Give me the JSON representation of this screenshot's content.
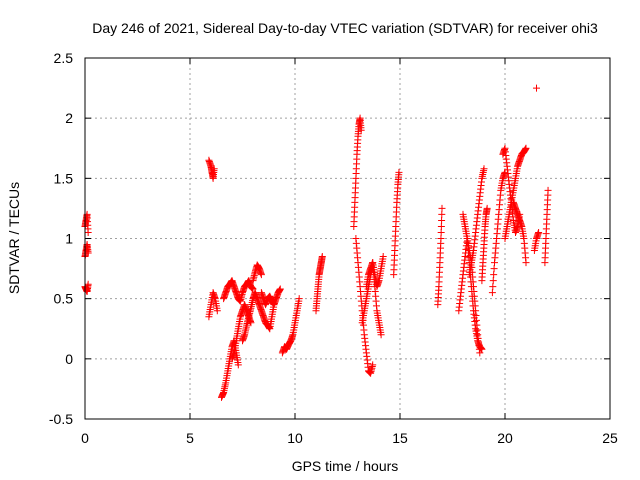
{
  "chart_data": {
    "type": "scatter",
    "title": "Day 246 of 2021, Sidereal Day-to-day VTEC variation (SDTVAR) for receiver ohi3",
    "xlabel": "GPS time / hours",
    "ylabel": "SDTVAR / TECUs",
    "xlim": [
      0,
      25
    ],
    "ylim": [
      -0.5,
      2.5
    ],
    "x_ticks": [
      0,
      5,
      10,
      15,
      20,
      25
    ],
    "x_tick_labels": [
      "0",
      "5",
      "10",
      "15",
      "20",
      "25"
    ],
    "y_ticks": [
      -0.5,
      0,
      0.5,
      1,
      1.5,
      2,
      2.5
    ],
    "y_tick_labels": [
      "-0.5",
      "0",
      "0.5",
      "1",
      "1.5",
      "2",
      "2.5"
    ],
    "grid": true,
    "marker": "plus",
    "color": "#ff0000",
    "series": [
      {
        "name": "SDTVAR",
        "segments": [
          {
            "x": [
              0.0,
              0.05,
              0.1,
              0.15
            ],
            "y": [
              0.6,
              0.58,
              0.56,
              0.62
            ]
          },
          {
            "x": [
              0.0,
              0.05,
              0.1,
              0.15
            ],
            "y": [
              0.85,
              0.9,
              0.95,
              0.88
            ]
          },
          {
            "x": [
              0.0,
              0.05,
              0.1,
              0.15
            ],
            "y": [
              1.1,
              1.15,
              1.2,
              1.05
            ]
          },
          {
            "x": [
              5.9,
              6.0,
              6.05,
              6.1,
              6.15
            ],
            "y": [
              1.65,
              1.6,
              1.55,
              1.5,
              1.58
            ]
          },
          {
            "x": [
              5.9,
              6.0,
              6.1,
              6.2,
              6.3
            ],
            "y": [
              0.35,
              0.45,
              0.55,
              0.5,
              0.4
            ]
          },
          {
            "x": [
              6.5,
              6.6,
              6.7,
              6.8,
              6.9,
              7.0,
              7.1,
              7.2,
              7.3
            ],
            "y": [
              -0.32,
              -0.28,
              -0.2,
              -0.1,
              0.0,
              0.1,
              0.15,
              0.05,
              -0.05
            ]
          },
          {
            "x": [
              6.6,
              6.7,
              6.8,
              6.9,
              7.0,
              7.1,
              7.2,
              7.3,
              7.4,
              7.5,
              7.6,
              7.7,
              7.8,
              7.9,
              8.0
            ],
            "y": [
              0.5,
              0.55,
              0.6,
              0.62,
              0.65,
              0.6,
              0.55,
              0.5,
              0.48,
              0.55,
              0.6,
              0.62,
              0.65,
              0.6,
              0.58
            ]
          },
          {
            "x": [
              7.0,
              7.1,
              7.2,
              7.3,
              7.4,
              7.5,
              7.6,
              7.7,
              7.8,
              7.9
            ],
            "y": [
              0.0,
              0.05,
              0.15,
              0.25,
              0.35,
              0.4,
              0.45,
              0.4,
              0.35,
              0.3
            ]
          },
          {
            "x": [
              7.5,
              7.6,
              7.7,
              7.8,
              7.9,
              8.0,
              8.1,
              8.2,
              8.3,
              8.4,
              8.5,
              8.6,
              8.7,
              8.8,
              8.9,
              9.0
            ],
            "y": [
              0.15,
              0.2,
              0.28,
              0.35,
              0.42,
              0.5,
              0.55,
              0.5,
              0.45,
              0.4,
              0.35,
              0.3,
              0.28,
              0.25,
              0.35,
              0.45
            ]
          },
          {
            "x": [
              8.0,
              8.1,
              8.2,
              8.3,
              8.4
            ],
            "y": [
              0.65,
              0.72,
              0.78,
              0.75,
              0.7
            ]
          },
          {
            "x": [
              8.4,
              8.5,
              8.6,
              8.7,
              8.8,
              8.9,
              9.0,
              9.1,
              9.2,
              9.3
            ],
            "y": [
              0.55,
              0.5,
              0.45,
              0.5,
              0.52,
              0.48,
              0.45,
              0.5,
              0.55,
              0.58
            ]
          },
          {
            "x": [
              9.4,
              9.5,
              9.6,
              9.7,
              9.8,
              9.9,
              10.0,
              10.1,
              10.2
            ],
            "y": [
              0.05,
              0.1,
              0.08,
              0.12,
              0.15,
              0.2,
              0.3,
              0.4,
              0.5
            ]
          },
          {
            "x": [
              11.0,
              11.05,
              11.1,
              11.15,
              11.2,
              11.25,
              11.3
            ],
            "y": [
              0.4,
              0.5,
              0.6,
              0.7,
              0.75,
              0.8,
              0.85
            ]
          },
          {
            "x": [
              12.8,
              12.85,
              12.9,
              12.95,
              13.0,
              13.05,
              13.1,
              13.15
            ],
            "y": [
              1.1,
              1.3,
              1.5,
              1.7,
              1.85,
              1.95,
              2.0,
              1.9
            ]
          },
          {
            "x": [
              12.9,
              13.0,
              13.1,
              13.2,
              13.3,
              13.4,
              13.5,
              13.6,
              13.7
            ],
            "y": [
              1.0,
              0.8,
              0.6,
              0.4,
              0.2,
              0.05,
              -0.1,
              -0.12,
              -0.05
            ]
          },
          {
            "x": [
              13.2,
              13.3,
              13.4,
              13.5,
              13.6,
              13.7,
              13.8,
              13.9,
              14.0,
              14.1
            ],
            "y": [
              0.3,
              0.4,
              0.5,
              0.6,
              0.7,
              0.8,
              0.6,
              0.4,
              0.3,
              0.2
            ]
          },
          {
            "x": [
              13.4,
              13.5,
              13.6,
              13.7,
              13.8,
              13.9,
              14.0,
              14.1,
              14.2
            ],
            "y": [
              0.6,
              0.7,
              0.75,
              0.8,
              0.7,
              0.6,
              0.65,
              0.75,
              0.85
            ]
          },
          {
            "x": [
              14.7,
              14.75,
              14.8,
              14.85,
              14.9,
              14.95
            ],
            "y": [
              0.7,
              0.9,
              1.1,
              1.3,
              1.45,
              1.55
            ]
          },
          {
            "x": [
              16.8,
              16.85,
              16.9,
              16.95,
              17.0
            ],
            "y": [
              0.45,
              0.6,
              0.8,
              1.0,
              1.25
            ]
          },
          {
            "x": [
              17.8,
              17.9,
              18.0,
              18.1,
              18.2,
              18.3,
              18.4,
              18.5,
              18.6,
              18.7,
              18.8
            ],
            "y": [
              0.4,
              0.55,
              0.7,
              0.85,
              1.0,
              0.9,
              0.8,
              0.6,
              0.4,
              0.2,
              0.05
            ]
          },
          {
            "x": [
              18.0,
              18.1,
              18.2,
              18.3,
              18.4,
              18.5,
              18.6,
              18.7,
              18.8,
              18.9
            ],
            "y": [
              1.2,
              1.1,
              1.0,
              0.8,
              0.6,
              0.4,
              0.25,
              0.15,
              0.1,
              0.08
            ]
          },
          {
            "x": [
              18.3,
              18.4,
              18.5,
              18.6,
              18.7,
              18.8,
              18.9,
              19.0
            ],
            "y": [
              0.7,
              0.8,
              0.9,
              1.05,
              1.2,
              1.35,
              1.5,
              1.58
            ]
          },
          {
            "x": [
              18.9,
              18.95,
              19.0,
              19.05,
              19.1,
              19.15
            ],
            "y": [
              0.65,
              0.8,
              0.95,
              1.1,
              1.2,
              1.25
            ]
          },
          {
            "x": [
              19.4,
              19.5,
              19.6,
              19.7,
              19.8,
              19.9,
              20.0
            ],
            "y": [
              0.55,
              0.8,
              1.0,
              1.2,
              1.4,
              1.5,
              1.55
            ]
          },
          {
            "x": [
              19.9,
              20.0,
              20.1,
              20.2,
              20.3,
              20.4,
              20.5,
              20.6,
              20.7
            ],
            "y": [
              1.7,
              1.75,
              1.6,
              1.45,
              1.3,
              1.15,
              1.05,
              1.1,
              1.2
            ]
          },
          {
            "x": [
              20.0,
              20.1,
              20.2,
              20.3,
              20.4,
              20.5,
              20.6,
              20.7,
              20.8,
              20.9,
              21.0
            ],
            "y": [
              1.0,
              1.1,
              1.2,
              1.3,
              1.4,
              1.5,
              1.6,
              1.65,
              1.7,
              1.72,
              1.75
            ]
          },
          {
            "x": [
              20.4,
              20.5,
              20.6,
              20.7,
              20.8,
              20.9,
              21.0
            ],
            "y": [
              1.3,
              1.25,
              1.2,
              1.15,
              1.1,
              1.0,
              0.8
            ]
          },
          {
            "x": [
              21.5
            ],
            "y": [
              2.25
            ]
          },
          {
            "x": [
              21.4,
              21.5,
              21.6
            ],
            "y": [
              0.9,
              1.0,
              1.05
            ]
          },
          {
            "x": [
              21.9,
              21.95,
              22.0,
              22.05
            ],
            "y": [
              0.8,
              1.0,
              1.2,
              1.4
            ]
          }
        ]
      }
    ]
  }
}
